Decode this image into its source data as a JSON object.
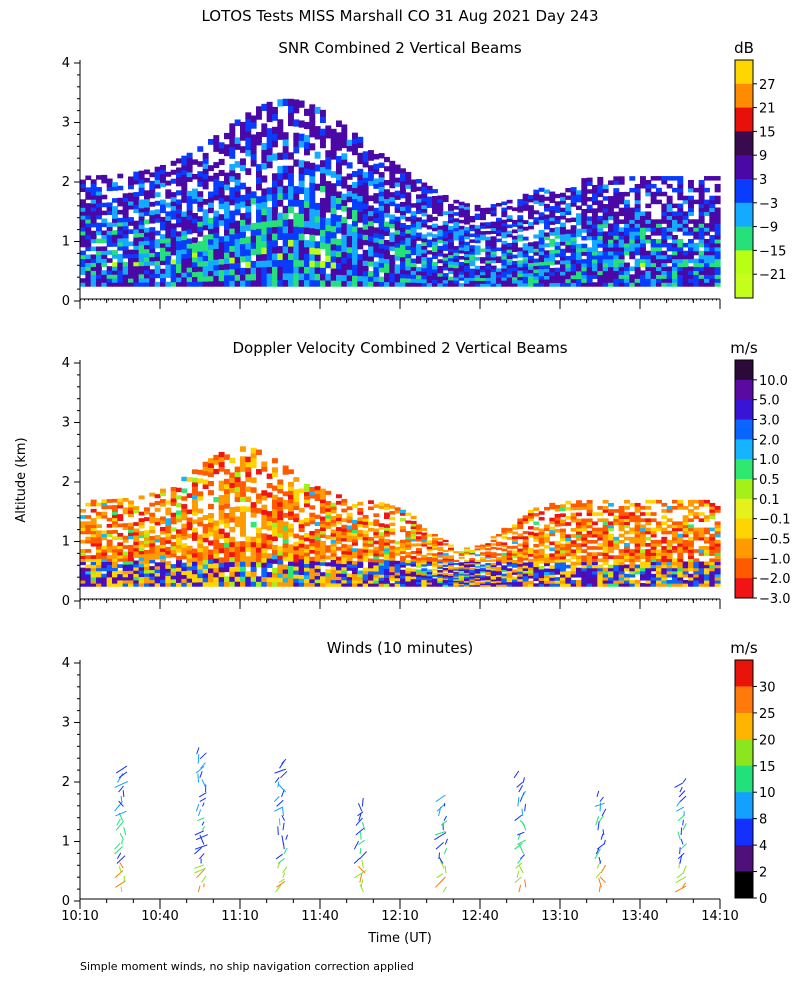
{
  "title": "LOTOS Tests MISS Marshall CO  31 Aug 2021 Day 243",
  "ylabel": "Altitude (km)",
  "xlabel": "Time (UT)",
  "footnote": "Simple moment winds, no ship navigation correction applied",
  "x_ticks": [
    "10:10",
    "10:40",
    "11:10",
    "11:40",
    "12:10",
    "12:40",
    "13:10",
    "13:40",
    "14:10"
  ],
  "y_ticks": [
    "0",
    "1",
    "2",
    "3",
    "4"
  ],
  "chart_data": [
    {
      "type": "heatmap",
      "title": "SNR Combined 2 Vertical Beams",
      "xlim": [
        "10:10",
        "14:10"
      ],
      "ylim": [
        0,
        4
      ],
      "colorbar": {
        "unit": "dB",
        "labels": [
          "27",
          "21",
          "15",
          "9",
          "3",
          "−3",
          "−9",
          "−15",
          "−21"
        ],
        "colors": [
          "#ffd700",
          "#ff8c00",
          "#e8100a",
          "#3a0a4e",
          "#4a08a6",
          "#0a3cff",
          "#14aaff",
          "#26e07a",
          "#b8ff14",
          "#c4ff1c"
        ]
      }
    },
    {
      "type": "heatmap",
      "title": "Doppler Velocity Combined 2 Vertical Beams",
      "xlim": [
        "10:10",
        "14:10"
      ],
      "ylim": [
        0,
        4
      ],
      "colorbar": {
        "unit": "m/s",
        "labels": [
          "10.0",
          "5.0",
          "3.0",
          "2.0",
          "1.0",
          "0.5",
          "0.1",
          "−0.1",
          "−0.5",
          "−1.0",
          "−2.0",
          "−3.0"
        ],
        "colors": [
          "#2b0a3a",
          "#5a0aa0",
          "#3a14d6",
          "#0a64ff",
          "#14b4ff",
          "#2ee870",
          "#a6f01a",
          "#e6f01a",
          "#ffd400",
          "#ff9a00",
          "#ff5a00",
          "#f01414"
        ]
      }
    },
    {
      "type": "scatter",
      "title": "Winds (10 minutes)",
      "xlim": [
        "10:10",
        "14:10"
      ],
      "ylim": [
        0,
        4
      ],
      "colorbar": {
        "unit": "m/s",
        "labels": [
          "30",
          "25",
          "20",
          "15",
          "10",
          "8",
          "4",
          "2",
          "0"
        ],
        "colors": [
          "#e8140a",
          "#ff7a0a",
          "#ffb400",
          "#8ce61e",
          "#22e07a",
          "#14a0ff",
          "#1430ff",
          "#50107a",
          "#000000"
        ]
      },
      "wind_profiles_times": [
        "10:25",
        "10:55",
        "11:25",
        "11:55",
        "12:25",
        "12:55",
        "13:25",
        "13:55"
      ]
    }
  ]
}
